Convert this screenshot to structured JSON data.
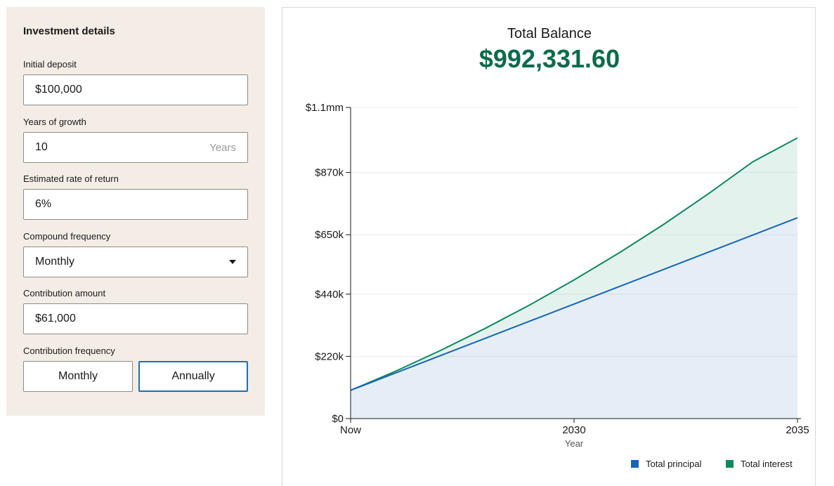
{
  "form": {
    "title": "Investment details",
    "initial_deposit": {
      "label": "Initial deposit",
      "value": "$100,000"
    },
    "years_of_growth": {
      "label": "Years of growth",
      "value": "10",
      "suffix": "Years"
    },
    "rate_of_return": {
      "label": "Estimated rate of return",
      "value": "6%"
    },
    "compound_frequency": {
      "label": "Compound frequency",
      "value": "Monthly"
    },
    "contribution_amount": {
      "label": "Contribution amount",
      "value": "$61,000"
    },
    "contribution_frequency": {
      "label": "Contribution frequency",
      "options": [
        "Monthly",
        "Annually"
      ],
      "selected": "Annually"
    }
  },
  "summary": {
    "label": "Total Balance",
    "value": "$992,331.60"
  },
  "colors": {
    "principal": "#1565b8",
    "interest": "#0d8a5c",
    "accent": "#0c6b4c",
    "panel_bg": "#f3ede6"
  },
  "chart_data": {
    "type": "area",
    "x": [
      0,
      1,
      2,
      3,
      4,
      5,
      6,
      7,
      8,
      9,
      10
    ],
    "x_tick_labels": [
      {
        "x": 0,
        "label": "Now"
      },
      {
        "x": 5,
        "label": "2030"
      },
      {
        "x": 10,
        "label": "2035"
      }
    ],
    "xlabel": "Year",
    "ylabel": "",
    "y_ticks": [
      {
        "value": 0,
        "label": "$0"
      },
      {
        "value": 220000,
        "label": "$220k"
      },
      {
        "value": 440000,
        "label": "$440k"
      },
      {
        "value": 650000,
        "label": "$650k"
      },
      {
        "value": 870000,
        "label": "$870k"
      },
      {
        "value": 1100000,
        "label": "$1.1mm"
      }
    ],
    "ylim": [
      0,
      1100000
    ],
    "grid": true,
    "legend_position": "bottom-right",
    "series": [
      {
        "name": "Total principal",
        "values": [
          100000,
          161000,
          222000,
          283000,
          344000,
          405000,
          466000,
          527000,
          588000,
          649000,
          710000
        ]
      },
      {
        "name": "Total interest",
        "values": [
          100000,
          167000,
          240000,
          318000,
          401000,
          490000,
          585000,
          686000,
          794000,
          908000,
          992332
        ]
      }
    ]
  }
}
